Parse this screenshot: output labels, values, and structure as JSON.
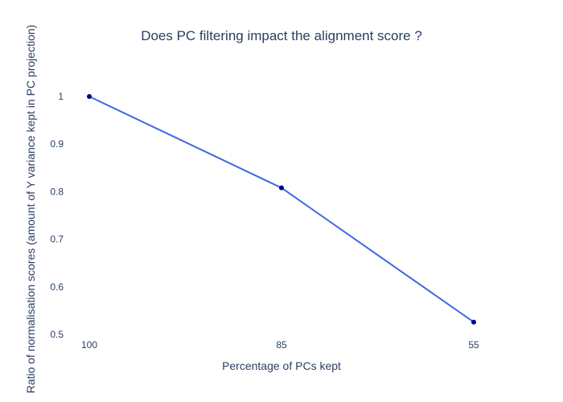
{
  "chart_data": {
    "type": "line",
    "title": "Does PC filtering impact the alignment score ?",
    "xlabel": "Percentage of PCs kept",
    "ylabel": "Ratio of normalisation scores (amount of Y variance kept in PC projection)",
    "categories": [
      "100",
      "85",
      "55"
    ],
    "values": [
      1.0,
      0.808,
      0.526
    ],
    "y_ticks": [
      "0.5",
      "0.6",
      "0.7",
      "0.8",
      "0.9",
      "1"
    ],
    "ylim": [
      0.5,
      1.0
    ],
    "grid": false,
    "legend": "none",
    "line_color": "#4169e1",
    "marker_color": "#00008b"
  }
}
